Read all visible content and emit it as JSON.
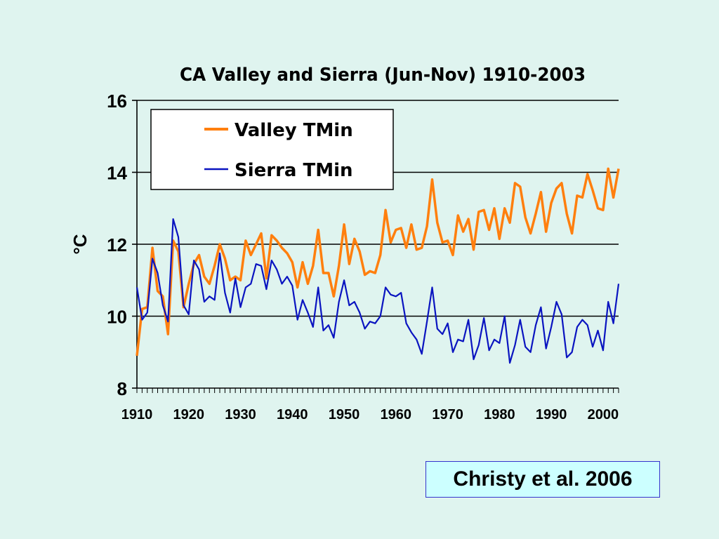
{
  "chart_data": {
    "type": "line",
    "title": "CA Valley and Sierra (Jun-Nov) 1910-2003",
    "xlabel": "",
    "ylabel": "°C",
    "xlim": [
      1910,
      2003
    ],
    "ylim": [
      8,
      16
    ],
    "y_ticks": [
      8,
      10,
      12,
      14,
      16
    ],
    "x_tick_labels": [
      1910,
      1920,
      1930,
      1940,
      1950,
      1960,
      1970,
      1980,
      1990,
      2000
    ],
    "grid": "horizontal major gridlines",
    "legend_position": "top-left",
    "x": [
      1910,
      1911,
      1912,
      1913,
      1914,
      1915,
      1916,
      1917,
      1918,
      1919,
      1920,
      1921,
      1922,
      1923,
      1924,
      1925,
      1926,
      1927,
      1928,
      1929,
      1930,
      1931,
      1932,
      1933,
      1934,
      1935,
      1936,
      1937,
      1938,
      1939,
      1940,
      1941,
      1942,
      1943,
      1944,
      1945,
      1946,
      1947,
      1948,
      1949,
      1950,
      1951,
      1952,
      1953,
      1954,
      1955,
      1956,
      1957,
      1958,
      1959,
      1960,
      1961,
      1962,
      1963,
      1964,
      1965,
      1966,
      1967,
      1968,
      1969,
      1970,
      1971,
      1972,
      1973,
      1974,
      1975,
      1976,
      1977,
      1978,
      1979,
      1980,
      1981,
      1982,
      1983,
      1984,
      1985,
      1986,
      1987,
      1988,
      1989,
      1990,
      1991,
      1992,
      1993,
      1994,
      1995,
      1996,
      1997,
      1998,
      1999,
      2000,
      2001,
      2002,
      2003
    ],
    "series": [
      {
        "name": "Valley TMin",
        "color": "#ff7f0e",
        "values": [
          8.9,
          10.2,
          10.25,
          11.9,
          10.7,
          10.55,
          9.5,
          12.1,
          11.8,
          10.25,
          10.9,
          11.45,
          11.7,
          11.1,
          10.9,
          11.4,
          12.0,
          11.6,
          11.0,
          11.1,
          11.0,
          12.1,
          11.7,
          12.0,
          12.3,
          11.05,
          12.25,
          12.1,
          11.9,
          11.75,
          11.5,
          10.8,
          11.5,
          10.9,
          11.4,
          12.4,
          11.2,
          11.2,
          10.55,
          11.4,
          12.55,
          11.45,
          12.15,
          11.8,
          11.15,
          11.25,
          11.2,
          11.7,
          12.95,
          12.05,
          12.4,
          12.45,
          11.9,
          12.55,
          11.85,
          11.9,
          12.5,
          13.8,
          12.6,
          12.05,
          12.1,
          11.7,
          12.8,
          12.35,
          12.7,
          11.85,
          12.9,
          12.95,
          12.4,
          13.0,
          12.15,
          13.0,
          12.6,
          13.7,
          13.6,
          12.75,
          12.3,
          12.85,
          13.45,
          12.35,
          13.15,
          13.55,
          13.7,
          12.85,
          12.3,
          13.35,
          13.3,
          13.95,
          13.5,
          13.0,
          12.95,
          14.1,
          13.3,
          14.1
        ]
      },
      {
        "name": "Sierra TMin",
        "color": "#0a14c0",
        "values": [
          10.8,
          9.9,
          10.1,
          11.6,
          11.2,
          10.3,
          9.85,
          12.7,
          12.2,
          10.3,
          10.05,
          11.55,
          11.3,
          10.4,
          10.55,
          10.45,
          11.75,
          10.65,
          10.1,
          11.05,
          10.25,
          10.8,
          10.9,
          11.45,
          11.4,
          10.75,
          11.55,
          11.3,
          10.9,
          11.1,
          10.85,
          9.9,
          10.45,
          10.1,
          9.7,
          10.8,
          9.6,
          9.75,
          9.4,
          10.4,
          11.0,
          10.3,
          10.4,
          10.1,
          9.65,
          9.85,
          9.8,
          10.0,
          10.8,
          10.6,
          10.55,
          10.65,
          9.8,
          9.55,
          9.35,
          8.95,
          9.85,
          10.8,
          9.65,
          9.5,
          9.8,
          9.0,
          9.35,
          9.3,
          9.9,
          8.8,
          9.2,
          9.95,
          9.05,
          9.35,
          9.25,
          10.0,
          8.7,
          9.2,
          9.9,
          9.15,
          9.0,
          9.75,
          10.25,
          9.1,
          9.7,
          10.4,
          10.05,
          8.85,
          9.0,
          9.7,
          9.9,
          9.75,
          9.15,
          9.6,
          9.05,
          10.4,
          9.8,
          10.9
        ]
      }
    ]
  },
  "citation": "Christy et al. 2006"
}
